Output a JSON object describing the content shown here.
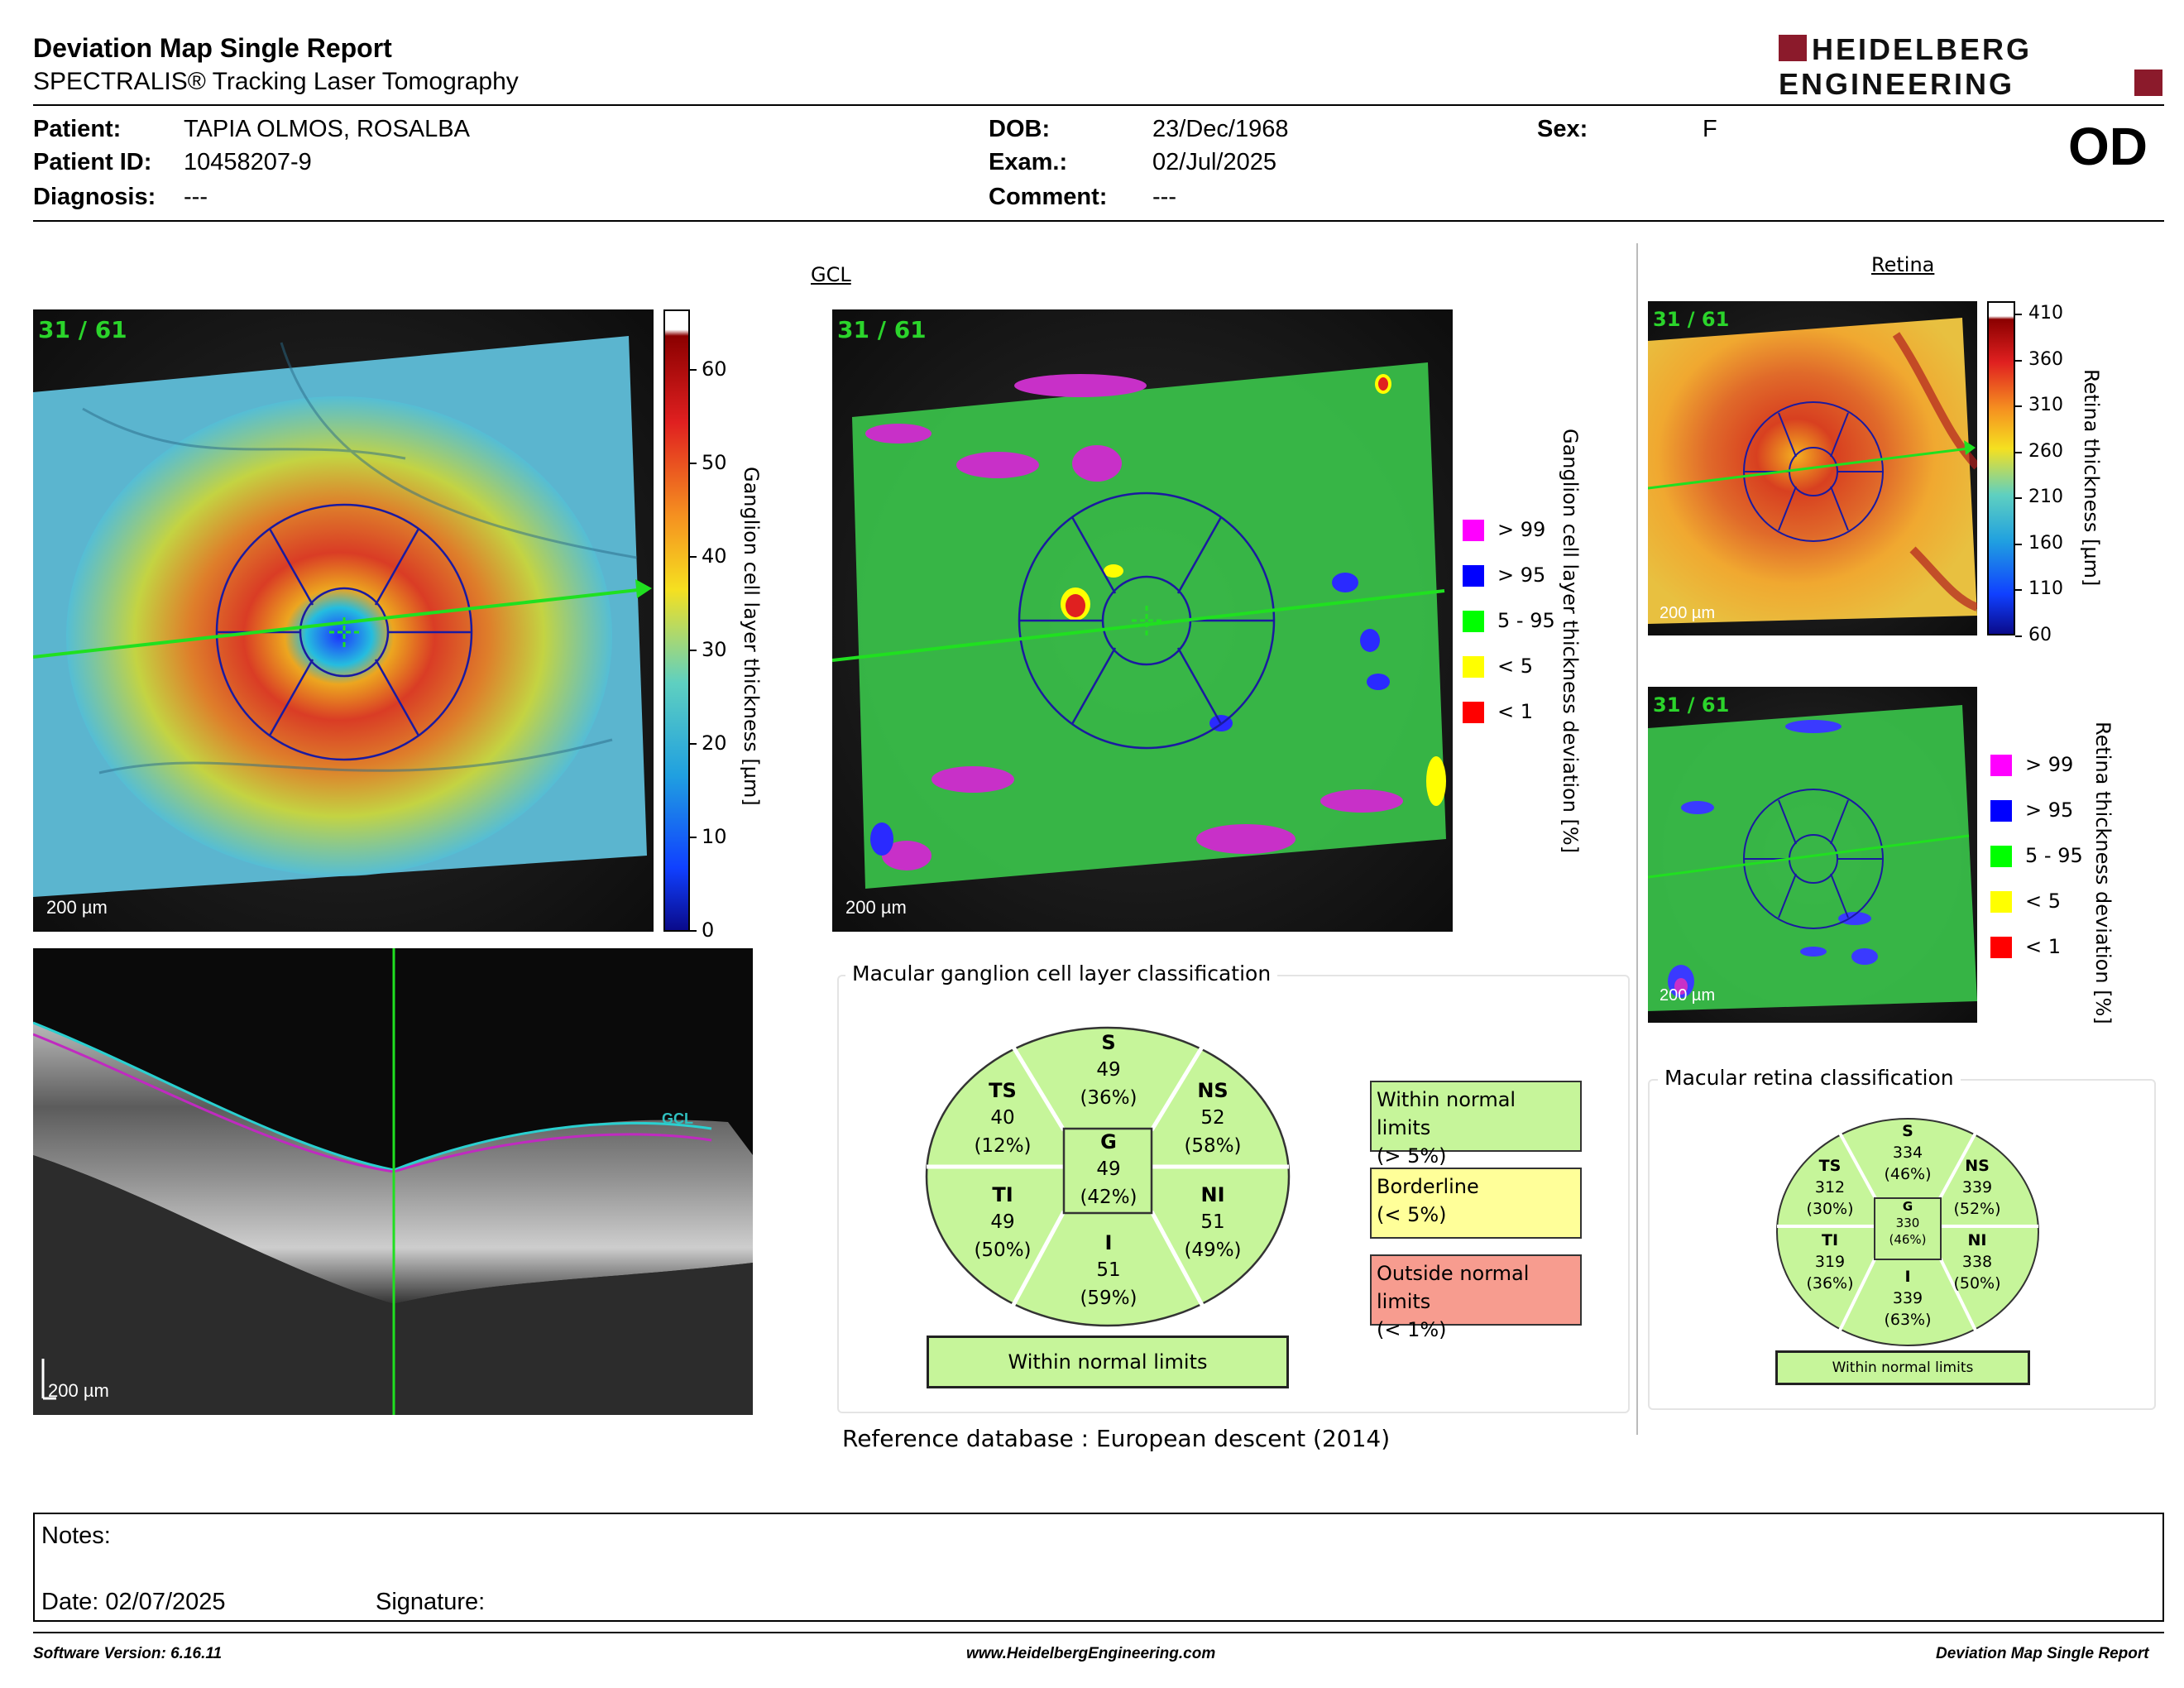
{
  "header": {
    "title": "Deviation Map Single Report",
    "subtitle": "SPECTRALIS® Tracking Laser Tomography",
    "logo_line1": "HEIDELBERG",
    "logo_line2": "ENGINEERING",
    "eye": "OD"
  },
  "patient": {
    "patient_label": "Patient:",
    "patient_value": "TAPIA OLMOS, ROSALBA",
    "id_label": "Patient ID:",
    "id_value": "10458207-9",
    "diagnosis_label": "Diagnosis:",
    "diagnosis_value": "---",
    "dob_label": "DOB:",
    "dob_value": "23/Dec/1968",
    "exam_label": "Exam.:",
    "exam_value": "02/Jul/2025",
    "comment_label": "Comment:",
    "comment_value": "---",
    "sex_label": "Sex:",
    "sex_value": "F"
  },
  "gcl": {
    "section_title": "GCL",
    "frames": "31 / 61",
    "scale": "200 µm",
    "thickness_axis_label": "Ganglion cell layer thickness [µm]",
    "thickness_ticks": [
      "60",
      "50",
      "40",
      "30",
      "20",
      "10",
      "0"
    ],
    "deviation_axis_label": "Ganglion cell layer thickness deviation [%]",
    "legend": [
      {
        "label": "> 99",
        "color": "#ff00ff"
      },
      {
        "label": "> 95",
        "color": "#0000ff"
      },
      {
        "label": "5 - 95",
        "color": "#00ff00"
      },
      {
        "label": "< 5",
        "color": "#ffff00"
      },
      {
        "label": "< 1",
        "color": "#ff0000"
      }
    ],
    "oct_scale": "200 µm",
    "oct_layer_tag": "GCL"
  },
  "retina": {
    "section_title": "Retina",
    "frames": "31 / 61",
    "scale": "200 µm",
    "thickness_axis_label": "Retina thickness [µm]",
    "thickness_ticks": [
      "410",
      "360",
      "310",
      "260",
      "210",
      "160",
      "110",
      "60"
    ],
    "deviation_axis_label": "Retina thickness deviation [%]",
    "legend": [
      {
        "label": "> 99",
        "color": "#ff00ff"
      },
      {
        "label": "> 95",
        "color": "#0000ff"
      },
      {
        "label": "5 - 95",
        "color": "#00ff00"
      },
      {
        "label": "< 5",
        "color": "#ffff00"
      },
      {
        "label": "< 1",
        "color": "#ff0000"
      }
    ]
  },
  "gcl_classification": {
    "panel_title": "Macular ganglion cell layer classification",
    "S": {
      "name": "S",
      "value": "49",
      "pct": "(36%)"
    },
    "TS": {
      "name": "TS",
      "value": "40",
      "pct": "(12%)"
    },
    "NS": {
      "name": "NS",
      "value": "52",
      "pct": "(58%)"
    },
    "G": {
      "name": "G",
      "value": "49",
      "pct": "(42%)"
    },
    "TI": {
      "name": "TI",
      "value": "49",
      "pct": "(50%)"
    },
    "NI": {
      "name": "NI",
      "value": "51",
      "pct": "(49%)"
    },
    "I": {
      "name": "I",
      "value": "51",
      "pct": "(59%)"
    },
    "result": "Within normal limits",
    "key": [
      {
        "line1": "Within normal limits",
        "line2": "(> 5%)",
        "color": "#c6f59a"
      },
      {
        "line1": "Borderline",
        "line2": "(< 5%)",
        "color": "#ffff99"
      },
      {
        "line1": "Outside normal limits",
        "line2": "(< 1%)",
        "color": "#f79c8f"
      }
    ],
    "reference_label": "Reference database :",
    "reference_value": "European descent (2014)"
  },
  "retina_classification": {
    "panel_title": "Macular retina classification",
    "S": {
      "name": "S",
      "value": "334",
      "pct": "(46%)"
    },
    "TS": {
      "name": "TS",
      "value": "312",
      "pct": "(30%)"
    },
    "NS": {
      "name": "NS",
      "value": "339",
      "pct": "(52%)"
    },
    "G": {
      "name": "G",
      "value": "330",
      "pct": "(46%)"
    },
    "TI": {
      "name": "TI",
      "value": "319",
      "pct": "(36%)"
    },
    "NI": {
      "name": "NI",
      "value": "338",
      "pct": "(50%)"
    },
    "I": {
      "name": "I",
      "value": "339",
      "pct": "(63%)"
    },
    "result": "Within normal limits"
  },
  "notes": {
    "notes_label": "Notes:",
    "date_label": "Date: 02/07/2025",
    "signature_label": "Signature:"
  },
  "footer": {
    "software": "Software Version: 6.16.11",
    "website": "www.HeidelbergEngineering.com",
    "report_name": "Deviation Map Single Report"
  },
  "colors": {
    "normal": "#c6f59a",
    "borderline": "#ffff99",
    "outside": "#f79c8f",
    "logo_red": "#8b1a2b"
  }
}
